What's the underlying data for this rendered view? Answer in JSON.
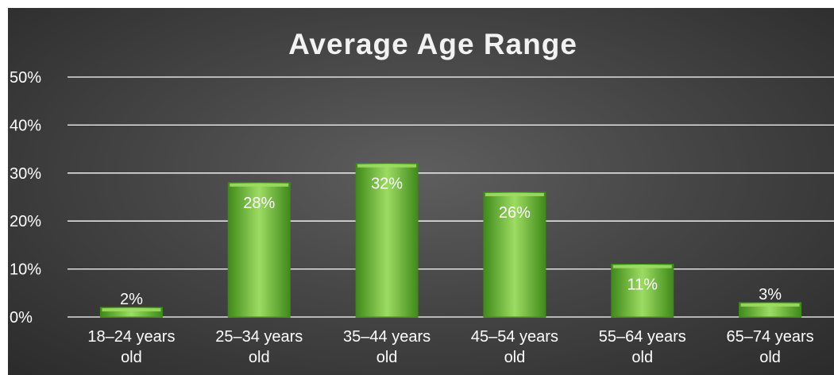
{
  "chart_data": {
    "type": "bar",
    "title": "Average Age Range",
    "xlabel": "",
    "ylabel": "",
    "categories": [
      [
        "18–24 years",
        "old"
      ],
      [
        "25–34 years",
        "old"
      ],
      [
        "35–44 years",
        "old"
      ],
      [
        "45–54 years",
        "old"
      ],
      [
        "55–64 years",
        "old"
      ],
      [
        "65–74 years",
        "old"
      ]
    ],
    "values": [
      2,
      28,
      32,
      26,
      11,
      3
    ],
    "data_labels": [
      "2%",
      "28%",
      "32%",
      "26%",
      "11%",
      "3%"
    ],
    "yticks": [
      "0%",
      "10%",
      "20%",
      "30%",
      "40%",
      "50%"
    ],
    "ylim": [
      0,
      50
    ],
    "grid": true,
    "bar_color": "#6fbf3a",
    "bar_highlight": "#9ddc63",
    "bar_shadow": "#3f8a1a",
    "background": "#464646"
  }
}
